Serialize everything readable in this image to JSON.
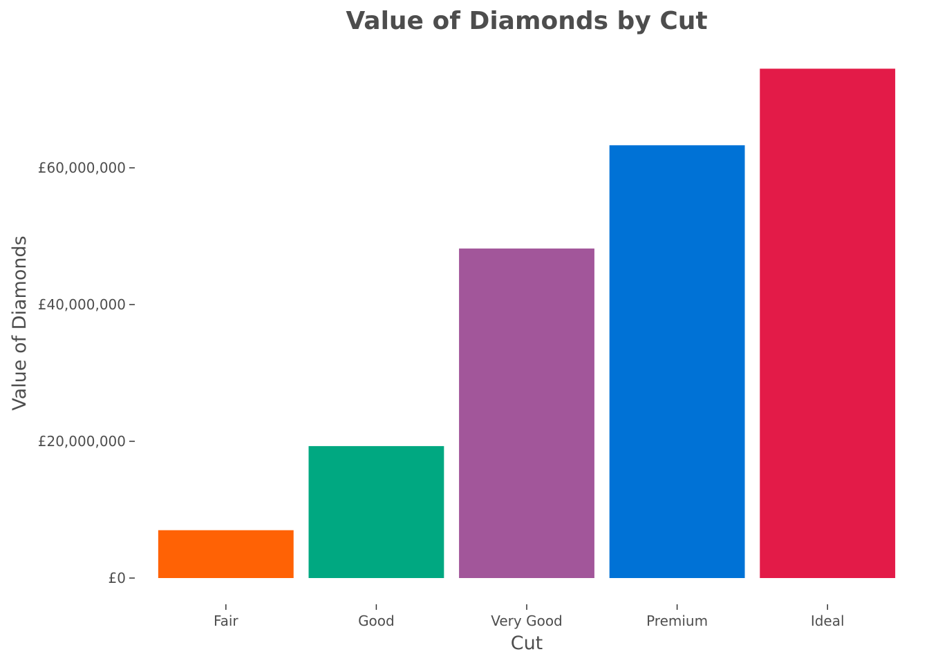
{
  "chart_data": {
    "type": "bar",
    "title": "Value of Diamonds by Cut",
    "xlabel": "Cut",
    "ylabel": "Value of Diamonds",
    "categories": [
      "Fair",
      "Good",
      "Very Good",
      "Premium",
      "Ideal"
    ],
    "values": [
      7000000,
      19300000,
      48200000,
      63300000,
      74500000
    ],
    "colors": [
      "#FF6205",
      "#00A881",
      "#A2569A",
      "#0072D6",
      "#E31B48"
    ],
    "ylim": [
      0,
      75000000
    ],
    "yticks": [
      {
        "value": 0,
        "label": "£0"
      },
      {
        "value": 20000000,
        "label": "£20,000,000"
      },
      {
        "value": 40000000,
        "label": "£40,000,000"
      },
      {
        "value": 60000000,
        "label": "£60,000,000"
      }
    ],
    "grid": false,
    "legend": "none",
    "text_color": "#4D4D4D",
    "tick_color": "#333333"
  }
}
